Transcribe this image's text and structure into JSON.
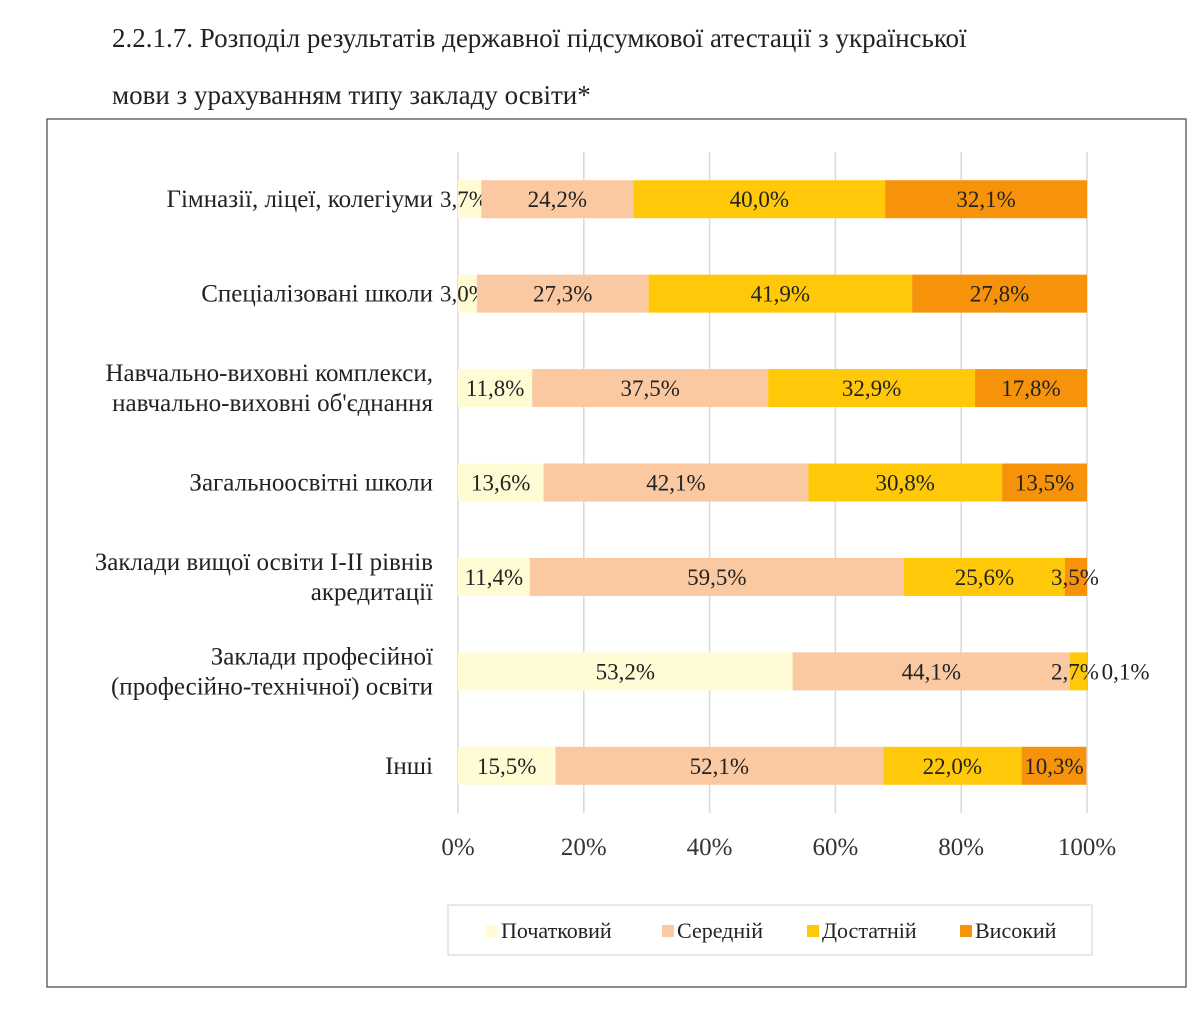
{
  "title_line1": "2.2.1.7. Розподіл результатів державної підсумкової атестації з української",
  "title_line2": "мови з урахуванням типу закладу освіти*",
  "chart_data": {
    "type": "bar",
    "orientation": "horizontal",
    "stacked": "percent",
    "categories": [
      [
        "Гімназії, ліцеї, колегіуми"
      ],
      [
        "Спеціалізовані школи"
      ],
      [
        "Навчально-виховні комплекси,",
        "навчально-виховні об'єднання"
      ],
      [
        "Загальноосвітні школи"
      ],
      [
        "Заклади вищої освіти I-II рівнів",
        "акредитації"
      ],
      [
        "Заклади професійної",
        "(професійно-технічної) освіти"
      ],
      [
        "Інші"
      ]
    ],
    "series": [
      {
        "name": "Початковий",
        "color": "#FFFCD5",
        "values": [
          3.7,
          3.0,
          11.8,
          13.6,
          11.4,
          53.2,
          15.5
        ]
      },
      {
        "name": "Середній",
        "color": "#FAC9A1",
        "values": [
          24.2,
          27.3,
          37.5,
          42.1,
          59.5,
          44.1,
          52.1
        ]
      },
      {
        "name": "Достатній",
        "color": "#FFC90A",
        "values": [
          40.0,
          41.9,
          32.9,
          30.8,
          25.6,
          2.7,
          22.0
        ]
      },
      {
        "name": "Високий",
        "color": "#F7930A",
        "values": [
          32.1,
          27.8,
          17.8,
          13.5,
          3.5,
          0.1,
          10.3
        ]
      }
    ],
    "xticks": [
      "0%",
      "20%",
      "40%",
      "60%",
      "80%",
      "100%"
    ],
    "xlim": [
      0,
      100
    ],
    "grid": true,
    "legend": "bottom"
  }
}
